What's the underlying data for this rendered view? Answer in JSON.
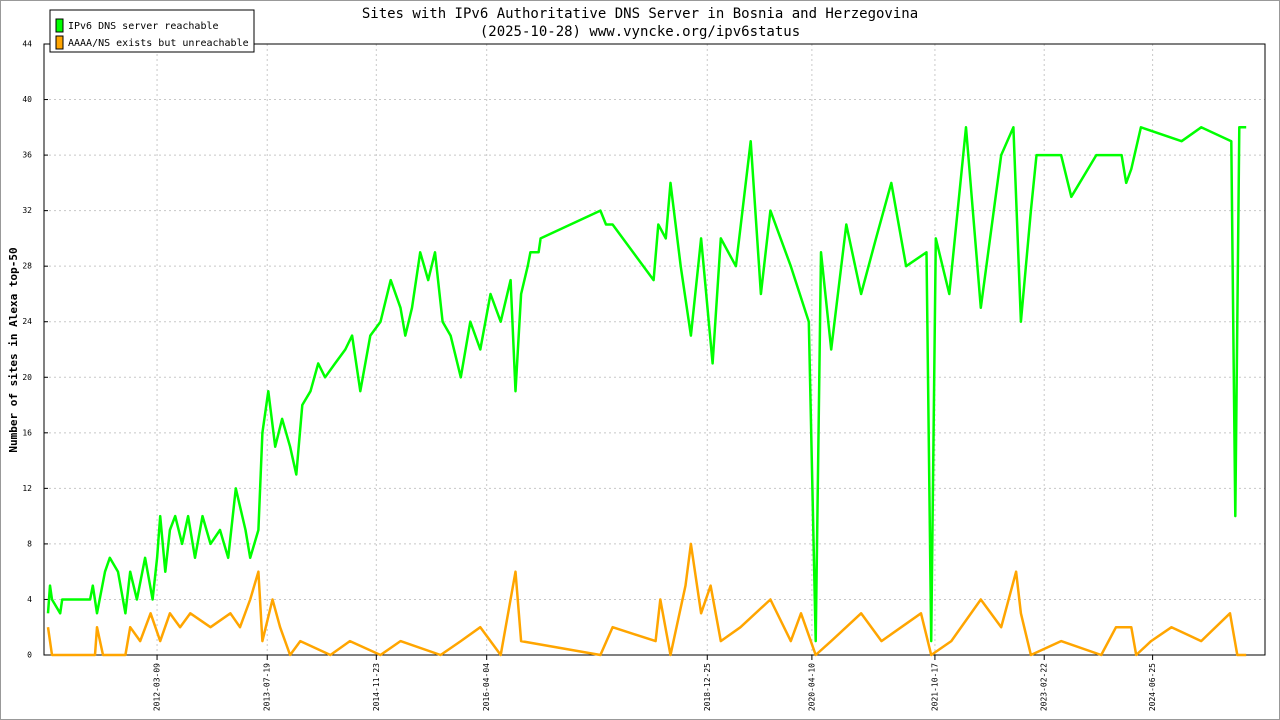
{
  "chart_data": {
    "type": "line",
    "title": "Sites with IPv6 Authoritative DNS Server in Bosnia and Herzegovina",
    "subtitle": "(2025-10-28) www.vyncke.org/ipv6status",
    "y_label": "Number of sites in Alexa top-50",
    "xlim": [
      "2010-10-16",
      "2025-11-14"
    ],
    "xticks": [
      "2012-03-09",
      "2013-07-19",
      "2014-11-23",
      "2016-04-04",
      "2018-12-25",
      "2020-04-10",
      "2021-10-17",
      "2023-02-22",
      "2024-06-25"
    ],
    "ylim": [
      0,
      44
    ],
    "yticks": [
      0,
      4,
      8,
      12,
      16,
      20,
      24,
      28,
      32,
      36,
      40,
      44
    ],
    "grid": true,
    "legend": "top-left",
    "series": [
      {
        "name": "IPv6 DNS server reachable",
        "color": "#00ff00",
        "x": [
          "2010-11-03",
          "2010-11-12",
          "2010-11-21",
          "2010-12-28",
          "2011-01-06",
          "2011-05-12",
          "2011-05-24",
          "2011-06-12",
          "2011-07-18",
          "2011-08-09",
          "2011-09-15",
          "2011-10-18",
          "2011-11-09",
          "2011-12-09",
          "2012-01-15",
          "2012-02-18",
          "2012-03-09",
          "2012-03-23",
          "2012-04-15",
          "2012-05-06",
          "2012-05-30",
          "2012-06-30",
          "2012-07-27",
          "2012-08-27",
          "2012-09-30",
          "2012-11-05",
          "2012-12-18",
          "2013-01-24",
          "2013-02-27",
          "2013-04-12",
          "2013-05-03",
          "2013-06-09",
          "2013-06-27",
          "2013-07-24",
          "2013-08-24",
          "2013-09-24",
          "2013-10-30",
          "2013-11-27",
          "2013-12-24",
          "2014-01-30",
          "2014-03-06",
          "2014-04-06",
          "2014-05-21",
          "2014-07-06",
          "2014-08-06",
          "2014-09-12",
          "2014-10-27",
          "2014-12-12",
          "2015-01-27",
          "2015-03-12",
          "2015-04-03",
          "2015-05-03",
          "2015-06-09",
          "2015-07-15",
          "2015-08-15",
          "2015-09-18",
          "2015-10-24",
          "2015-12-09",
          "2016-01-21",
          "2016-03-06",
          "2016-04-21",
          "2016-06-06",
          "2016-07-21",
          "2016-08-12",
          "2016-09-06",
          "2016-10-06",
          "2016-10-18",
          "2016-11-24",
          "2016-12-03",
          "2017-08-30",
          "2017-09-24",
          "2017-10-24",
          "2018-04-27",
          "2018-05-18",
          "2018-06-21",
          "2018-07-12",
          "2018-08-27",
          "2018-10-12",
          "2018-11-27",
          "2019-01-18",
          "2019-02-24",
          "2019-05-03",
          "2019-07-09",
          "2019-08-24",
          "2019-10-06",
          "2020-01-06",
          "2020-03-27",
          "2020-04-27",
          "2020-05-21",
          "2020-07-06",
          "2020-09-12",
          "2020-11-18",
          "2021-01-24",
          "2021-04-03",
          "2021-06-09",
          "2021-09-09",
          "2021-09-30",
          "2021-10-21",
          "2021-12-21",
          "2022-03-06",
          "2022-05-12",
          "2022-08-12",
          "2022-10-06",
          "2022-11-09",
          "2022-12-24",
          "2023-01-18",
          "2023-05-09",
          "2023-06-24",
          "2023-10-15",
          "2024-02-06",
          "2024-02-27",
          "2024-03-21",
          "2024-05-03",
          "2024-11-03",
          "2025-01-30",
          "2025-06-15",
          "2025-07-03",
          "2025-07-21",
          "2025-08-21"
        ],
        "values": [
          3,
          5,
          4,
          3,
          4,
          4,
          5,
          3,
          6,
          7,
          6,
          3,
          6,
          4,
          7,
          4,
          7,
          10,
          6,
          9,
          10,
          8,
          10,
          7,
          10,
          8,
          9,
          7,
          12,
          9,
          7,
          9,
          16,
          19,
          15,
          17,
          15,
          13,
          18,
          19,
          21,
          20,
          21,
          22,
          23,
          19,
          23,
          24,
          27,
          25,
          23,
          25,
          29,
          27,
          29,
          24,
          23,
          20,
          24,
          22,
          26,
          24,
          27,
          19,
          26,
          28,
          29,
          29,
          30,
          32,
          31,
          31,
          27,
          31,
          30,
          34,
          28,
          23,
          30,
          21,
          30,
          28,
          37,
          26,
          32,
          28,
          24,
          1,
          29,
          22,
          31,
          26,
          30,
          34,
          28,
          29,
          1,
          30,
          26,
          38,
          25,
          36,
          38,
          24,
          32,
          36,
          36,
          33,
          36,
          36,
          34,
          35,
          38,
          37,
          38,
          37,
          10,
          38,
          38
        ]
      },
      {
        "name": "AAAA/NS exists but unreachable",
        "color": "#ffa500",
        "x": [
          "2010-11-03",
          "2010-11-21",
          "2011-06-03",
          "2011-06-12",
          "2011-07-09",
          "2011-10-18",
          "2011-11-09",
          "2011-12-24",
          "2012-02-09",
          "2012-03-23",
          "2012-05-06",
          "2012-06-21",
          "2012-08-06",
          "2012-11-05",
          "2013-02-03",
          "2013-03-18",
          "2013-05-03",
          "2013-06-09",
          "2013-06-27",
          "2013-08-12",
          "2013-09-15",
          "2013-10-30",
          "2013-12-15",
          "2014-04-30",
          "2014-07-27",
          "2014-12-12",
          "2015-03-12",
          "2015-09-09",
          "2015-12-09",
          "2016-03-06",
          "2016-06-06",
          "2016-08-12",
          "2016-09-06",
          "2017-08-30",
          "2017-10-24",
          "2018-05-06",
          "2018-05-27",
          "2018-07-12",
          "2018-09-18",
          "2018-10-12",
          "2018-11-27",
          "2019-01-09",
          "2019-02-24",
          "2019-05-24",
          "2019-10-06",
          "2020-01-06",
          "2020-02-21",
          "2020-04-27",
          "2020-07-06",
          "2020-11-18",
          "2021-02-18",
          "2021-08-15",
          "2021-09-30",
          "2021-12-30",
          "2022-05-12",
          "2022-08-12",
          "2022-10-18",
          "2022-11-09",
          "2022-12-24",
          "2023-05-09",
          "2023-11-06",
          "2024-01-12",
          "2024-03-21",
          "2024-04-12",
          "2024-06-18",
          "2024-09-18",
          "2025-01-30",
          "2025-06-09",
          "2025-07-12",
          "2025-08-21"
        ],
        "values": [
          2,
          0,
          0,
          2,
          0,
          0,
          2,
          1,
          3,
          1,
          3,
          2,
          3,
          2,
          3,
          2,
          4,
          6,
          1,
          4,
          2,
          0,
          1,
          0,
          1,
          0,
          1,
          0,
          1,
          2,
          0,
          6,
          1,
          0,
          2,
          1,
          4,
          0,
          5,
          8,
          3,
          5,
          1,
          2,
          4,
          1,
          3,
          0,
          1,
          3,
          1,
          3,
          0,
          1,
          4,
          2,
          6,
          3,
          0,
          1,
          0,
          2,
          2,
          0,
          1,
          2,
          1,
          3,
          0,
          0
        ]
      }
    ]
  }
}
